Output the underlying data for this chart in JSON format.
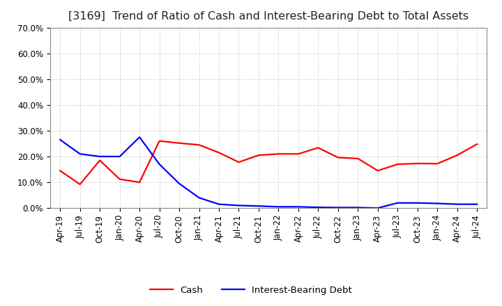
{
  "title": "[3169]  Trend of Ratio of Cash and Interest-Bearing Debt to Total Assets",
  "x_labels": [
    "Apr-19",
    "Jul-19",
    "Oct-19",
    "Jan-20",
    "Apr-20",
    "Jul-20",
    "Oct-20",
    "Jan-21",
    "Apr-21",
    "Jul-21",
    "Oct-21",
    "Jan-22",
    "Apr-22",
    "Jul-22",
    "Oct-22",
    "Jan-23",
    "Apr-23",
    "Jul-23",
    "Oct-23",
    "Jan-24",
    "Apr-24",
    "Jul-24"
  ],
  "cash": [
    0.145,
    0.092,
    0.185,
    0.112,
    0.1,
    0.26,
    0.252,
    0.245,
    0.215,
    0.178,
    0.205,
    0.21,
    0.21,
    0.234,
    0.196,
    0.192,
    0.145,
    0.17,
    0.173,
    0.172,
    0.205,
    0.248
  ],
  "interest_bearing_debt": [
    0.265,
    0.21,
    0.2,
    0.2,
    0.275,
    0.17,
    0.095,
    0.04,
    0.015,
    0.01,
    0.008,
    0.005,
    0.005,
    0.003,
    0.002,
    0.002,
    0.0,
    0.02,
    0.02,
    0.018,
    0.015,
    0.015
  ],
  "cash_color": "#ff0000",
  "ibd_color": "#0000ff",
  "ylim": [
    0.0,
    0.7
  ],
  "yticks": [
    0.0,
    0.1,
    0.2,
    0.3,
    0.4,
    0.5,
    0.6,
    0.7
  ],
  "background_color": "#ffffff",
  "grid_color": "#bbbbbb",
  "title_fontsize": 11.5,
  "tick_fontsize": 8.5,
  "legend_labels": [
    "Cash",
    "Interest-Bearing Debt"
  ]
}
